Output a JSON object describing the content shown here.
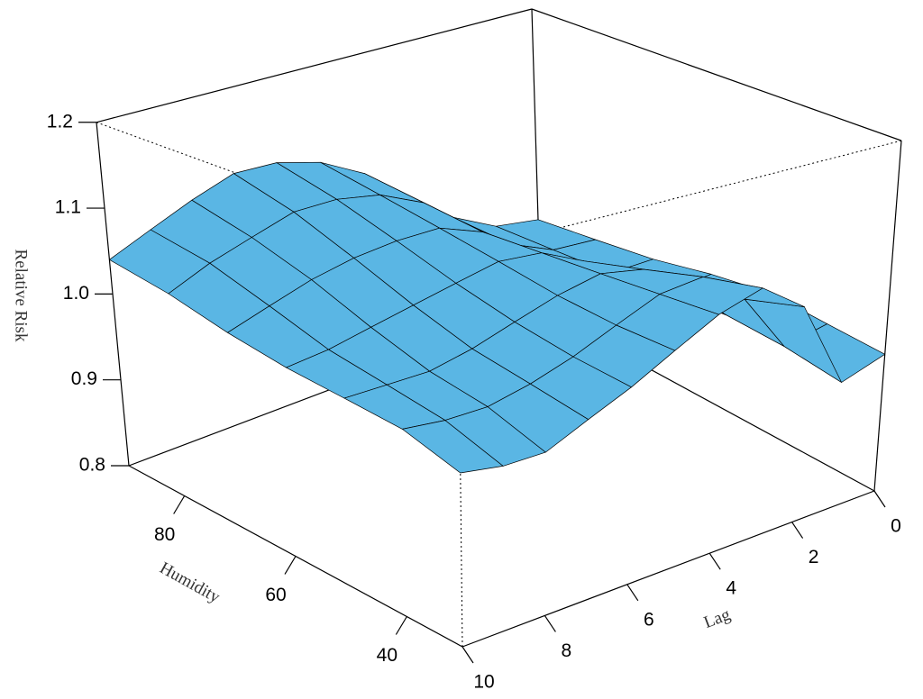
{
  "chart_data": {
    "type": "surface",
    "z_label": "Relative Risk",
    "x_label": "Humidity",
    "y_label": "Lag",
    "humidity": [
      30,
      40,
      50,
      60,
      70,
      80,
      90
    ],
    "lag": [
      0,
      1,
      2,
      3,
      4,
      5,
      6,
      7,
      8,
      9,
      10
    ],
    "z": [
      [
        0.956,
        0.94,
        1.04,
        1.075,
        1.06,
        1.035,
        1.01,
        0.99,
        0.97,
        0.97,
        0.977
      ],
      [
        0.96,
        0.95,
        1.02,
        1.06,
        1.055,
        1.035,
        1.015,
        1.0,
        0.99,
        0.99,
        0.995
      ],
      [
        0.965,
        0.955,
        1.0,
        1.04,
        1.05,
        1.04,
        1.025,
        1.01,
        1.0,
        1.0,
        1.0
      ],
      [
        0.955,
        0.95,
        0.98,
        1.02,
        1.045,
        1.05,
        1.04,
        1.03,
        1.02,
        1.01,
        1.005
      ],
      [
        0.94,
        0.94,
        0.965,
        1.0,
        1.04,
        1.06,
        1.06,
        1.055,
        1.045,
        1.03,
        1.015
      ],
      [
        0.93,
        0.935,
        0.96,
        1.0,
        1.045,
        1.07,
        1.08,
        1.08,
        1.065,
        1.05,
        1.03
      ],
      [
        0.92,
        0.93,
        0.96,
        1.0,
        1.05,
        1.08,
        1.095,
        1.097,
        1.08,
        1.06,
        1.04
      ]
    ],
    "color": "#5ab6e4",
    "humidity_lim": [
      30,
      90
    ],
    "humidity_ticks": [
      40,
      60,
      80
    ],
    "lag_lim": [
      0,
      10
    ],
    "lag_ticks": [
      0,
      2,
      4,
      6,
      8,
      10
    ],
    "zlim": [
      0.8,
      1.2
    ],
    "zticks": [
      0.8,
      0.9,
      {
        "value": 1,
        "label": "1.0"
      },
      1.1,
      1.2
    ]
  }
}
